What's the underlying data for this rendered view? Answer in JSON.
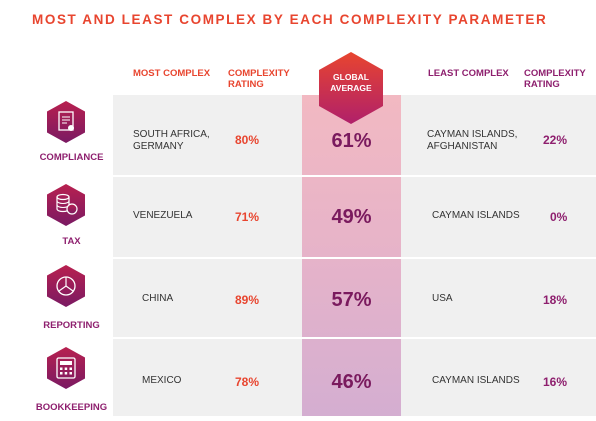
{
  "title": "MOST AND LEAST COMPLEX BY EACH COMPLEXITY PARAMETER",
  "headers": {
    "most_complex": "MOST COMPLEX",
    "complexity_rating_left": "COMPLEXITY RATING",
    "global_average": "GLOBAL AVERAGE",
    "least_complex": "LEAST COMPLEX",
    "complexity_rating_right": "COMPLEXITY RATING"
  },
  "rows": [
    {
      "category": "COMPLIANCE",
      "icon": "document-icon",
      "most_complex": "SOUTH AFRICA, GERMANY",
      "most_rating": "80%",
      "global_average": "61%",
      "least_complex": "CAYMAN ISLANDS, AFGHANISTAN",
      "least_rating": "22%"
    },
    {
      "category": "TAX",
      "icon": "coins-icon",
      "most_complex": "VENEZUELA",
      "most_rating": "71%",
      "global_average": "49%",
      "least_complex": "CAYMAN ISLANDS",
      "least_rating": "0%"
    },
    {
      "category": "REPORTING",
      "icon": "pie-chart-icon",
      "most_complex": "CHINA",
      "most_rating": "89%",
      "global_average": "57%",
      "least_complex": "USA",
      "least_rating": "18%"
    },
    {
      "category": "BOOKKEEPING",
      "icon": "calculator-icon",
      "most_complex": "MEXICO",
      "most_rating": "78%",
      "global_average": "46%",
      "least_complex": "CAYMAN ISLANDS",
      "least_rating": "16%"
    }
  ],
  "colors": {
    "accent_red": "#e8452f",
    "accent_purple": "#8e1f6e"
  }
}
